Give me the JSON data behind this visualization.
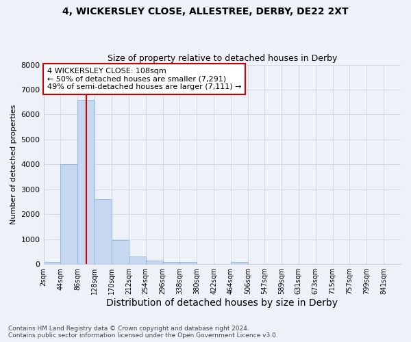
{
  "title": "4, WICKERSLEY CLOSE, ALLESTREE, DERBY, DE22 2XT",
  "subtitle": "Size of property relative to detached houses in Derby",
  "xlabel": "Distribution of detached houses by size in Derby",
  "ylabel": "Number of detached properties",
  "footer_line1": "Contains HM Land Registry data © Crown copyright and database right 2024.",
  "footer_line2": "Contains public sector information licensed under the Open Government Licence v3.0.",
  "bin_edges": [
    2,
    44,
    86,
    128,
    170,
    212,
    254,
    296,
    338,
    380,
    422,
    464,
    506,
    547,
    589,
    631,
    673,
    715,
    757,
    799,
    841
  ],
  "bar_heights": [
    75,
    4000,
    6600,
    2600,
    950,
    310,
    130,
    80,
    80,
    0,
    0,
    80,
    0,
    0,
    0,
    0,
    0,
    0,
    0,
    0
  ],
  "bar_color": "#c5d8f0",
  "bar_edge_color": "#7aadd4",
  "grid_color": "#c8cfe0",
  "background_color": "#eef2f8",
  "vline_x": 108,
  "vline_color": "#cc0000",
  "annotation_text": "4 WICKERSLEY CLOSE: 108sqm\n← 50% of detached houses are smaller (7,291)\n49% of semi-detached houses are larger (7,111) →",
  "annotation_box_color": "#cc0000",
  "ylim": [
    0,
    8000
  ],
  "yticks": [
    0,
    1000,
    2000,
    3000,
    4000,
    5000,
    6000,
    7000,
    8000
  ],
  "title_fontsize": 10,
  "subtitle_fontsize": 9,
  "xlabel_fontsize": 10,
  "ylabel_fontsize": 8,
  "xtick_fontsize": 7,
  "ytick_fontsize": 8
}
